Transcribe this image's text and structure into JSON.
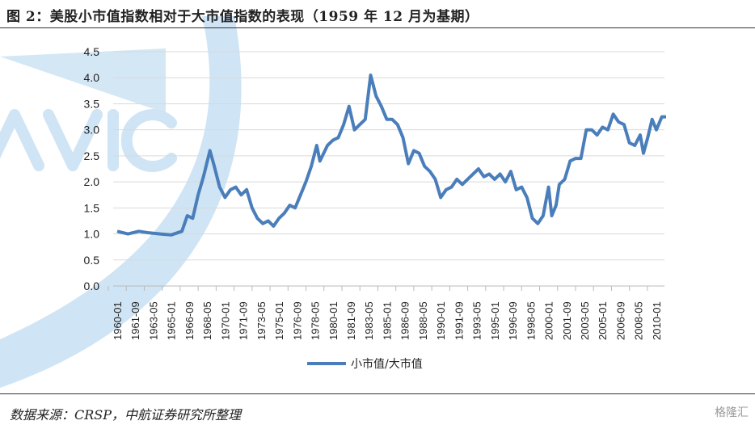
{
  "title": "图 2：美股小市值指数相对于大市值指数的表现（1959 年 12 月为基期）",
  "footer": "数据来源：CRSP，中航证券研究所整理",
  "logo": "格隆汇",
  "watermark": "AVIC",
  "chart_data": {
    "type": "line",
    "title": "",
    "xlabel": "",
    "ylabel": "",
    "ylim": [
      0,
      4.5
    ],
    "yticks": [
      "0.0",
      "0.5",
      "1.0",
      "1.5",
      "2.0",
      "2.5",
      "3.0",
      "3.5",
      "4.0",
      "4.5"
    ],
    "xticks": [
      "1960-01",
      "1961-09",
      "1963-05",
      "1965-01",
      "1966-09",
      "1968-05",
      "1970-01",
      "1971-09",
      "1973-05",
      "1975-01",
      "1976-09",
      "1978-05",
      "1980-01",
      "1981-09",
      "1983-05",
      "1985-01",
      "1986-09",
      "1988-05",
      "1990-01",
      "1991-09",
      "1993-05",
      "1995-01",
      "1996-09",
      "1998-05",
      "2000-01",
      "2001-09",
      "2003-05",
      "2005-01",
      "2006-09",
      "2008-05",
      "2010-01"
    ],
    "legend": "top-bottom",
    "series": [
      {
        "name": "小市值/大市值",
        "color": "#4a7ebb",
        "x": [
          1960,
          1961,
          1962,
          1963,
          1964,
          1965,
          1966,
          1966.5,
          1967,
          1967.5,
          1968,
          1968.6,
          1969,
          1969.5,
          1970,
          1970.5,
          1971,
          1971.5,
          1972,
          1972.5,
          1973,
          1973.5,
          1974,
          1974.5,
          1975,
          1975.5,
          1976,
          1976.5,
          1977,
          1977.5,
          1978,
          1978.5,
          1978.8,
          1979.5,
          1980,
          1980.5,
          1981,
          1981.5,
          1982,
          1982.5,
          1983,
          1983.5,
          1984,
          1984.5,
          1985,
          1985.5,
          1986,
          1986.5,
          1987,
          1987.5,
          1988,
          1988.5,
          1989,
          1989.5,
          1990,
          1990.5,
          1991,
          1991.5,
          1992,
          1993,
          1993.5,
          1994,
          1994.5,
          1995,
          1995.5,
          1996,
          1996.5,
          1997,
          1997.5,
          1998,
          1998.5,
          1999,
          1999.5,
          2000,
          2000.3,
          2000.7,
          2001,
          2001.5,
          2002,
          2002.5,
          2003,
          2003.5,
          2004,
          2004.5,
          2005,
          2005.5,
          2006,
          2006.5,
          2007,
          2007.5,
          2008,
          2008.5,
          2008.8,
          2009.2,
          2009.6,
          2010,
          2010.5,
          2010.9
        ],
        "y": [
          1.05,
          1.0,
          1.05,
          1.02,
          1.0,
          0.98,
          1.05,
          1.35,
          1.3,
          1.75,
          2.1,
          2.6,
          2.3,
          1.9,
          1.7,
          1.85,
          1.9,
          1.75,
          1.85,
          1.5,
          1.3,
          1.2,
          1.25,
          1.15,
          1.3,
          1.4,
          1.55,
          1.5,
          1.75,
          2.0,
          2.3,
          2.7,
          2.4,
          2.7,
          2.8,
          2.85,
          3.1,
          3.45,
          3.0,
          3.1,
          3.2,
          4.05,
          3.65,
          3.45,
          3.2,
          3.2,
          3.1,
          2.85,
          2.35,
          2.6,
          2.55,
          2.3,
          2.2,
          2.05,
          1.7,
          1.85,
          1.9,
          2.05,
          1.95,
          2.15,
          2.25,
          2.1,
          2.15,
          2.05,
          2.15,
          2.0,
          2.2,
          1.85,
          1.9,
          1.7,
          1.3,
          1.2,
          1.35,
          1.9,
          1.35,
          1.55,
          1.95,
          2.05,
          2.4,
          2.45,
          2.45,
          3.0,
          3.0,
          2.9,
          3.05,
          3.0,
          3.3,
          3.15,
          3.1,
          2.75,
          2.7,
          2.9,
          2.55,
          2.85,
          3.2,
          3.0,
          3.25,
          3.25
        ]
      }
    ]
  }
}
